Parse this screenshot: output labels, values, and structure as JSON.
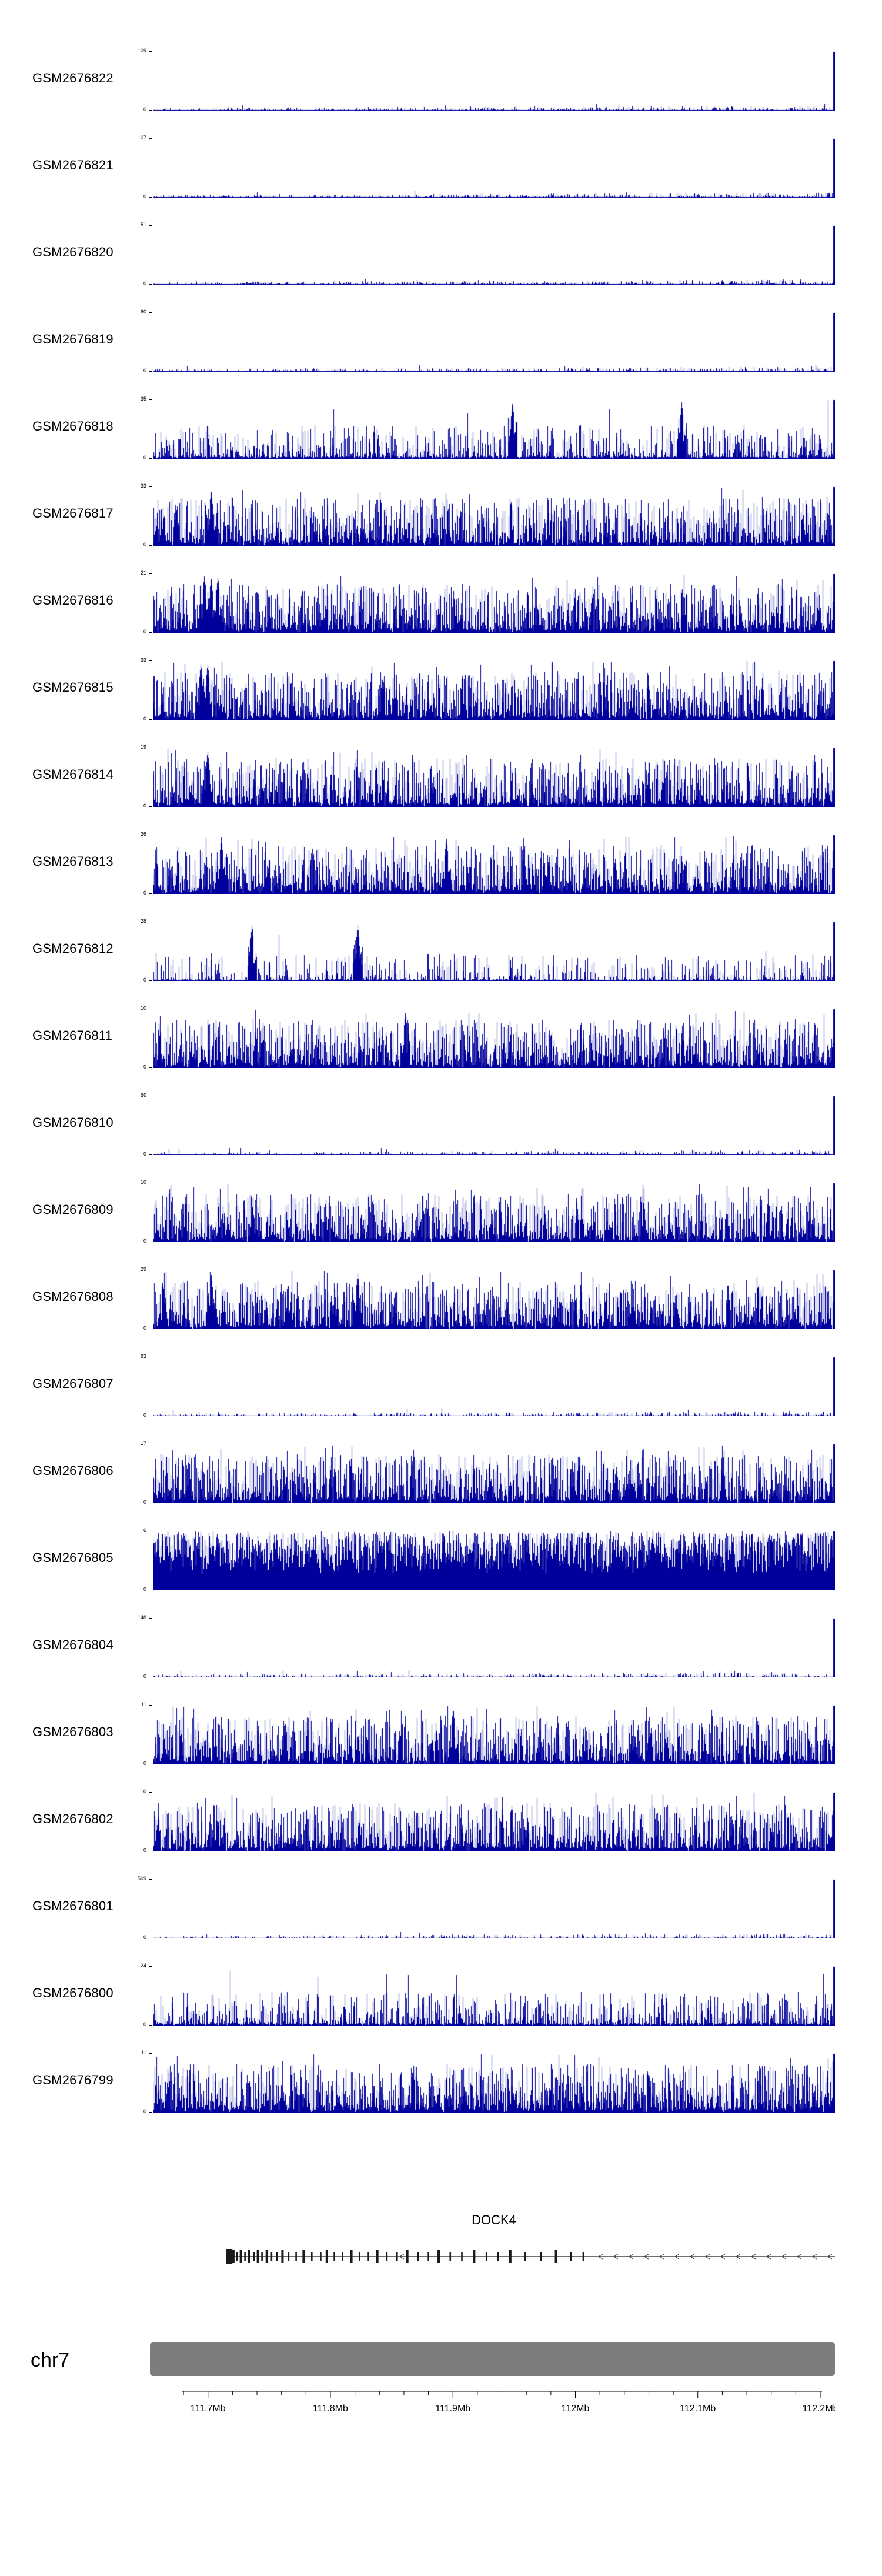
{
  "colors": {
    "signal": "#00009c",
    "ideogram": "#7d7d7d",
    "axis": "#000000",
    "gene": "#1a1a1a",
    "background": "#ffffff"
  },
  "chart_data": {
    "type": "area",
    "subtype": "genome-coverage-tracks",
    "x_axis": {
      "unit": "Mb",
      "region_start_mb": 111.655,
      "region_end_mb": 112.212,
      "tick_values_mb": [
        111.7,
        111.8,
        111.9,
        112.0,
        112.1,
        112.2
      ],
      "tick_labels": [
        "111.7Mb",
        "111.8Mb",
        "111.9Mb",
        "112Mb",
        "112.1Mb",
        "112.2Mb"
      ],
      "minor_tick_step_mb": 0.02,
      "minor_tick_start_mb": 111.68,
      "minor_tick_end_mb": 112.2
    },
    "y_axis": {
      "min_label": "0"
    },
    "tracks": [
      {
        "label": "GSM2676822",
        "ymax": "109",
        "profile": "quiet",
        "seed": 11,
        "peaks": []
      },
      {
        "label": "GSM2676821",
        "ymax": "107",
        "profile": "quiet",
        "seed": 12,
        "peaks": []
      },
      {
        "label": "GSM2676820",
        "ymax": "51",
        "profile": "quiet",
        "seed": 13,
        "peaks": []
      },
      {
        "label": "GSM2676819",
        "ymax": "60",
        "profile": "quiet",
        "seed": 14,
        "peaks": []
      },
      {
        "label": "GSM2676818",
        "ymax": "35",
        "profile": "mid",
        "seed": 15,
        "peaks": [
          0.527,
          0.775
        ]
      },
      {
        "label": "GSM2676817",
        "ymax": "33",
        "profile": "dense",
        "seed": 16,
        "peaks": [
          0.085
        ]
      },
      {
        "label": "GSM2676816",
        "ymax": "21",
        "profile": "dense",
        "seed": 17,
        "peaks": [
          0.075,
          0.085,
          0.095
        ]
      },
      {
        "label": "GSM2676815",
        "ymax": "33",
        "profile": "dense",
        "seed": 18,
        "peaks": [
          0.07,
          0.08
        ]
      },
      {
        "label": "GSM2676814",
        "ymax": "19",
        "profile": "dense",
        "seed": 19,
        "peaks": [
          0.08
        ]
      },
      {
        "label": "GSM2676813",
        "ymax": "26",
        "profile": "dense",
        "seed": 20,
        "peaks": [
          0.1,
          0.43
        ]
      },
      {
        "label": "GSM2676812",
        "ymax": "28",
        "profile": "sparse",
        "seed": 21,
        "peaks": [
          0.145,
          0.3
        ]
      },
      {
        "label": "GSM2676811",
        "ymax": "10",
        "profile": "dense",
        "seed": 22,
        "peaks": [
          0.37
        ]
      },
      {
        "label": "GSM2676810",
        "ymax": "86",
        "profile": "quiet",
        "seed": 23,
        "peaks": []
      },
      {
        "label": "GSM2676809",
        "ymax": "10",
        "profile": "dense",
        "seed": 24,
        "peaks": []
      },
      {
        "label": "GSM2676808",
        "ymax": "29",
        "profile": "dense",
        "seed": 25,
        "peaks": [
          0.085,
          0.3
        ]
      },
      {
        "label": "GSM2676807",
        "ymax": "83",
        "profile": "quiet",
        "seed": 26,
        "peaks": []
      },
      {
        "label": "GSM2676806",
        "ymax": "17",
        "profile": "dense",
        "seed": 27,
        "peaks": []
      },
      {
        "label": "GSM2676805",
        "ymax": "6",
        "profile": "solid",
        "seed": 28,
        "peaks": []
      },
      {
        "label": "GSM2676804",
        "ymax": "148",
        "profile": "quiet",
        "seed": 29,
        "peaks": []
      },
      {
        "label": "GSM2676803",
        "ymax": "11",
        "profile": "dense",
        "seed": 30,
        "peaks": [
          0.44
        ]
      },
      {
        "label": "GSM2676802",
        "ymax": "10",
        "profile": "dense",
        "seed": 31,
        "peaks": []
      },
      {
        "label": "GSM2676801",
        "ymax": "509",
        "profile": "quiet",
        "seed": 32,
        "peaks": []
      },
      {
        "label": "GSM2676800",
        "ymax": "24",
        "profile": "mid",
        "seed": 33,
        "peaks": []
      },
      {
        "label": "GSM2676799",
        "ymax": "11",
        "profile": "dense",
        "seed": 34,
        "peaks": []
      }
    ],
    "gene_track": {
      "gene_label": "DOCK4",
      "strand_direction": "left",
      "line_start_fraction": 0.108,
      "line_end_fraction": 1.0,
      "exons": [
        [
          0.11,
          26
        ],
        [
          0.114,
          26
        ],
        [
          0.118,
          22
        ],
        [
          0.123,
          16
        ],
        [
          0.129,
          22
        ],
        [
          0.135,
          16
        ],
        [
          0.141,
          22
        ],
        [
          0.148,
          16
        ],
        [
          0.154,
          22
        ],
        [
          0.16,
          16
        ],
        [
          0.167,
          22
        ],
        [
          0.174,
          16
        ],
        [
          0.182,
          16
        ],
        [
          0.19,
          22
        ],
        [
          0.199,
          16
        ],
        [
          0.21,
          16
        ],
        [
          0.221,
          22
        ],
        [
          0.233,
          16
        ],
        [
          0.246,
          16
        ],
        [
          0.255,
          22
        ],
        [
          0.266,
          16
        ],
        [
          0.278,
          16
        ],
        [
          0.291,
          22
        ],
        [
          0.303,
          16
        ],
        [
          0.316,
          16
        ],
        [
          0.329,
          22
        ],
        [
          0.343,
          16
        ],
        [
          0.358,
          16
        ],
        [
          0.373,
          22
        ],
        [
          0.389,
          16
        ],
        [
          0.404,
          16
        ],
        [
          0.419,
          22
        ],
        [
          0.436,
          16
        ],
        [
          0.453,
          16
        ],
        [
          0.471,
          22
        ],
        [
          0.489,
          16
        ],
        [
          0.506,
          16
        ],
        [
          0.524,
          22
        ],
        [
          0.546,
          16
        ],
        [
          0.569,
          16
        ],
        [
          0.591,
          22
        ],
        [
          0.613,
          16
        ],
        [
          0.631,
          16
        ]
      ]
    },
    "ideogram": {
      "chromosome_label": "chr7"
    }
  }
}
